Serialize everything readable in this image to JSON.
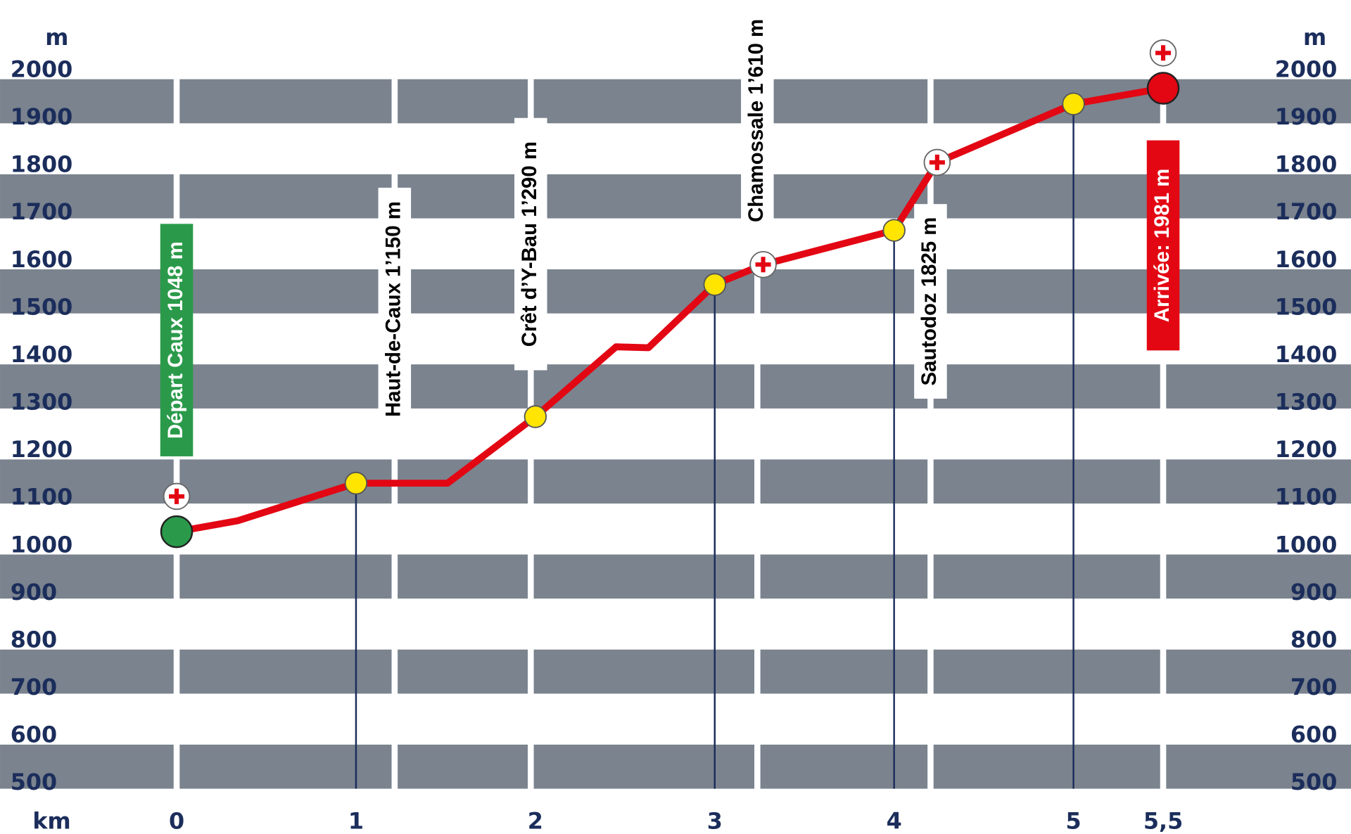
{
  "chart_data": {
    "type": "line",
    "y_label": "m",
    "x_label": "km",
    "xlim": [
      0,
      5.5
    ],
    "ylim": [
      500,
      2000
    ],
    "xticks": [
      0,
      1,
      2,
      3,
      4,
      5,
      {
        "value": 5.5,
        "label": "5,5"
      }
    ],
    "yticks": [
      500,
      600,
      700,
      800,
      900,
      1000,
      1100,
      1200,
      1300,
      1400,
      1500,
      1600,
      1700,
      1800,
      1900,
      2000
    ],
    "mirror_y_axis": true,
    "bands": true,
    "series": [
      {
        "color": "#e30613",
        "x": [
          0,
          0.34,
          1,
          1.51,
          2,
          2.45,
          2.63,
          3,
          3.27,
          4,
          4.24,
          5,
          5.5
        ],
        "values": [
          1048,
          1071,
          1150,
          1150,
          1290,
          1437,
          1435,
          1568,
          1610,
          1682,
          1825,
          1948,
          1981
        ],
        "markers": [
          "start",
          "none",
          "waypoint-drop",
          "none",
          "waypoint",
          "none",
          "none",
          "waypoint-drop",
          "aid",
          "waypoint-drop",
          "aid",
          "waypoint-drop",
          "end"
        ]
      }
    ],
    "annotations": [
      {
        "text": "Départ Caux 1048 m",
        "style": "green"
      },
      {
        "text": "Haut-de-Caux 1’150 m",
        "style": "white"
      },
      {
        "text": "Crêt d’Y-Bau 1’290 m",
        "style": "white"
      },
      {
        "text": "Chamossale 1’610 m",
        "style": "white"
      },
      {
        "text": "Sautodoz 1825 m",
        "style": "white"
      },
      {
        "text": "Arrivée: 1981 m",
        "style": "red"
      }
    ]
  }
}
